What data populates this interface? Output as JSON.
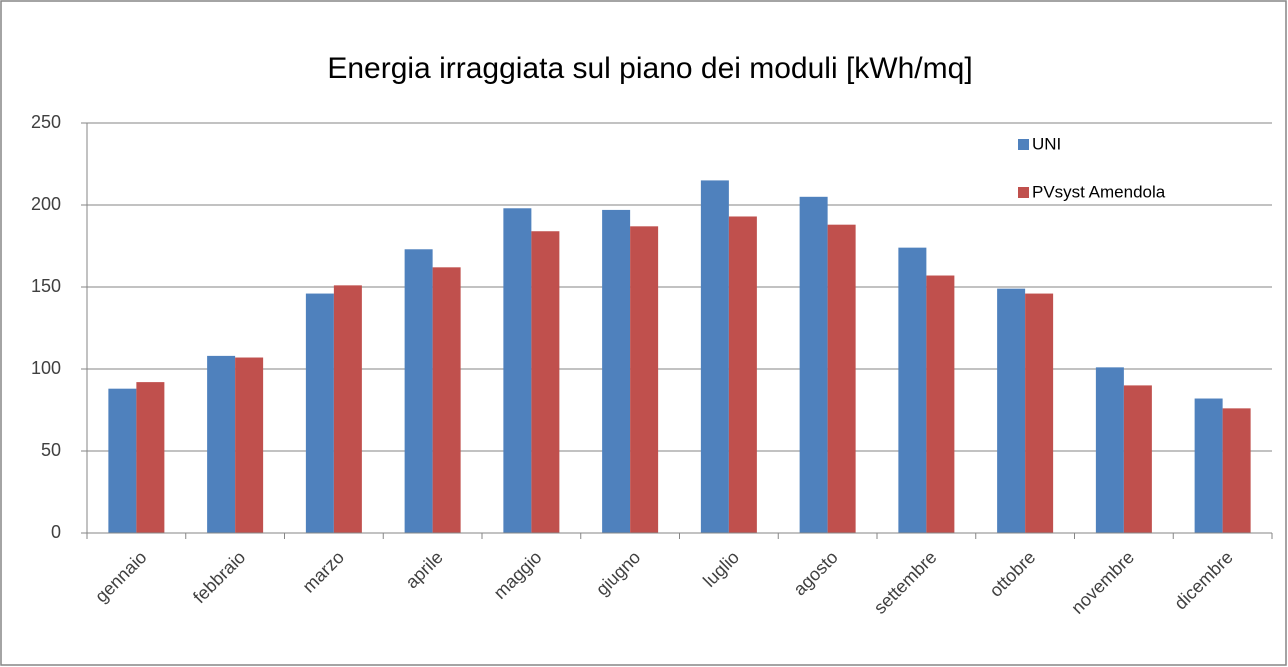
{
  "chart_data": {
    "type": "bar",
    "title": "Energia irraggiata sul piano dei moduli [kWh/mq]",
    "categories": [
      "gennaio",
      "febbraio",
      "marzo",
      "aprile",
      "maggio",
      "giugno",
      "luglio",
      "agosto",
      "settembre",
      "ottobre",
      "novembre",
      "dicembre"
    ],
    "series": [
      {
        "name": "UNI",
        "color": "#4f81bd",
        "values": [
          88,
          108,
          146,
          173,
          198,
          197,
          215,
          205,
          174,
          149,
          101,
          82
        ]
      },
      {
        "name": "PVsyst Amendola",
        "color": "#c0504d",
        "values": [
          92,
          107,
          151,
          162,
          184,
          187,
          193,
          188,
          157,
          146,
          90,
          76
        ]
      }
    ],
    "ylim": [
      0,
      250
    ],
    "yticks": [
      0,
      50,
      100,
      150,
      200,
      250
    ],
    "grid": true,
    "legend": "top-right"
  }
}
